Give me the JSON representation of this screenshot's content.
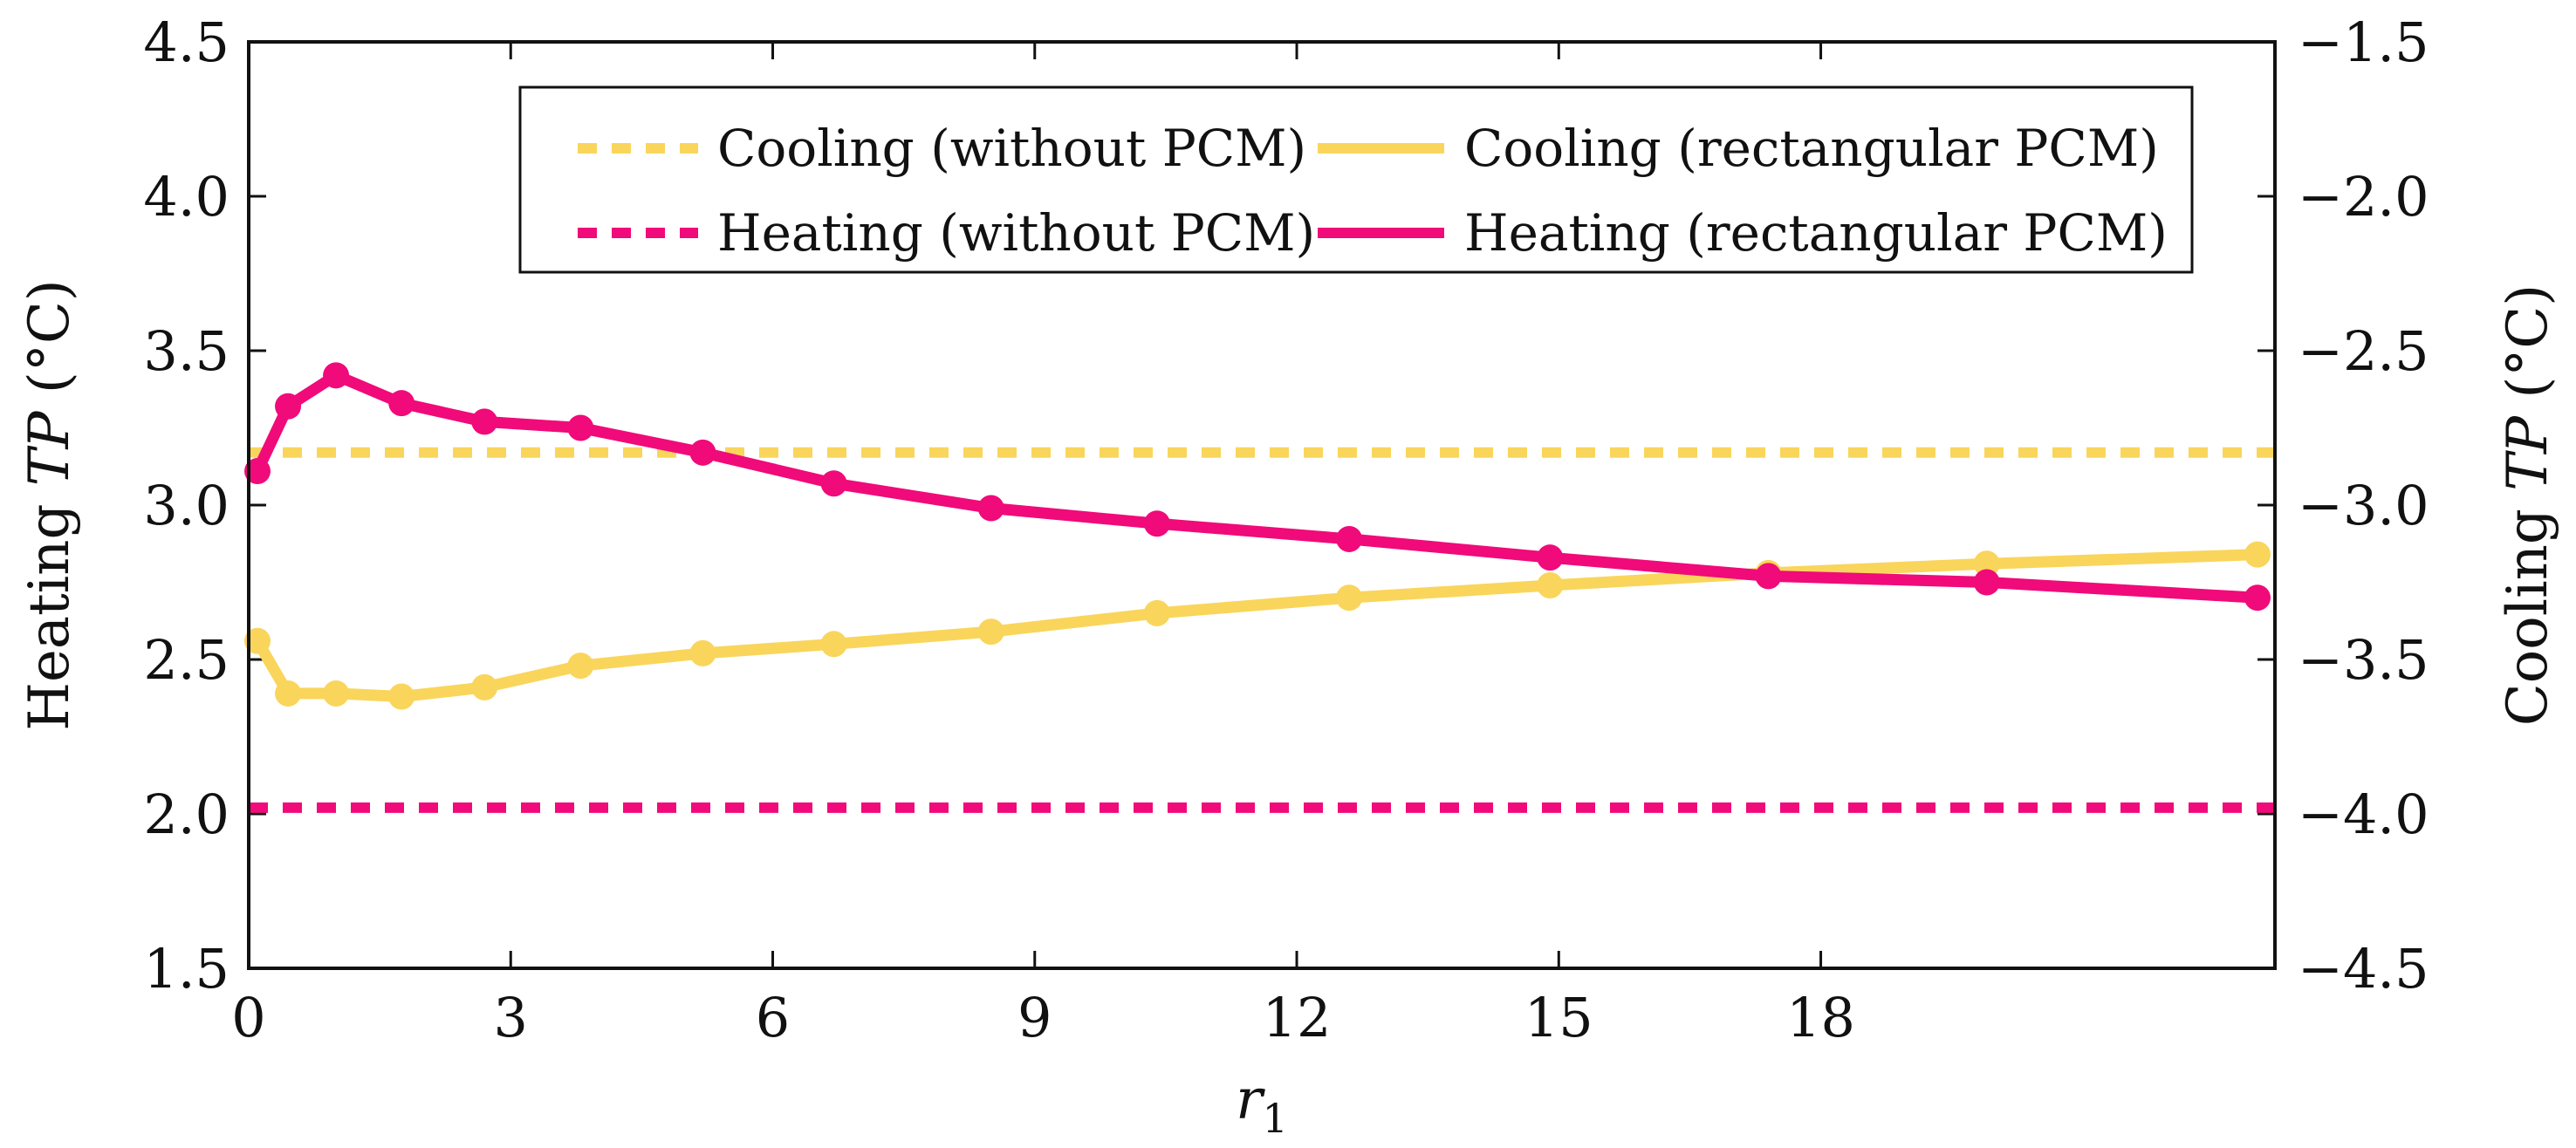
{
  "chart_data": {
    "type": "line",
    "title": "",
    "xlabel": "r1",
    "xlabel_main": "r",
    "xlabel_sub": "1",
    "ylabel_left": "Heating TP (°C)",
    "ylabel_left_parts": [
      "Heating ",
      "TP",
      " (°C)"
    ],
    "ylabel_right": "Cooling TP (°C)",
    "ylabel_right_parts": [
      "Cooling ",
      "TP",
      " (°C)"
    ],
    "xlim": [
      0,
      23.2
    ],
    "ylim_left": [
      1.5,
      4.5
    ],
    "ylim_right": [
      -4.5,
      -1.5
    ],
    "x_ticks": [
      0,
      3,
      6,
      9,
      12,
      15,
      18
    ],
    "x_tick_labels": [
      "0",
      "3",
      "6",
      "9",
      "12",
      "15",
      "18"
    ],
    "y_left_ticks": [
      1.5,
      2.0,
      2.5,
      3.0,
      3.5,
      4.0,
      4.5
    ],
    "y_left_tick_labels": [
      "1.5",
      "2.0",
      "2.5",
      "3.0",
      "3.5",
      "4.0",
      "4.5"
    ],
    "y_right_ticks": [
      -4.5,
      -4.0,
      -3.5,
      -3.0,
      -2.5,
      -2.0,
      -1.5
    ],
    "y_right_tick_labels": [
      "−4.5",
      "−4.0",
      "−3.5",
      "−3.0",
      "−2.5",
      "−2.0",
      "−1.5"
    ],
    "grid": false,
    "legend_position": "top-right",
    "series": [
      {
        "name": "Cooling (without PCM)",
        "axis": "right",
        "style": "dashed",
        "color": "#F9D55B",
        "x": [
          0,
          23.2
        ],
        "y": [
          -2.83,
          -2.83
        ]
      },
      {
        "name": "Heating (without PCM)",
        "axis": "left",
        "style": "dashed",
        "color": "#F00A7A",
        "x": [
          0,
          23.2
        ],
        "y": [
          2.02,
          2.02
        ]
      },
      {
        "name": "Cooling (rectangular PCM)",
        "axis": "right",
        "style": "solid",
        "color": "#F9D55B",
        "x": [
          0.1,
          0.45,
          1.0,
          1.75,
          2.7,
          3.8,
          5.2,
          6.7,
          8.5,
          10.4,
          12.6,
          14.9,
          17.4,
          19.9,
          23.0
        ],
        "y": [
          -3.44,
          -3.61,
          -3.61,
          -3.62,
          -3.59,
          -3.52,
          -3.48,
          -3.45,
          -3.41,
          -3.35,
          -3.3,
          -3.26,
          -3.22,
          -3.19,
          -3.16
        ]
      },
      {
        "name": "Heating (rectangular PCM)",
        "axis": "left",
        "style": "solid",
        "color": "#F00A7A",
        "x": [
          0.1,
          0.45,
          1.0,
          1.75,
          2.7,
          3.8,
          5.2,
          6.7,
          8.5,
          10.4,
          12.6,
          14.9,
          17.4,
          19.9,
          23.0
        ],
        "y": [
          3.11,
          3.32,
          3.42,
          3.33,
          3.27,
          3.25,
          3.17,
          3.07,
          2.99,
          2.94,
          2.89,
          2.83,
          2.77,
          2.75,
          2.7
        ]
      }
    ],
    "legend_order": [
      0,
      2,
      1,
      3
    ]
  }
}
